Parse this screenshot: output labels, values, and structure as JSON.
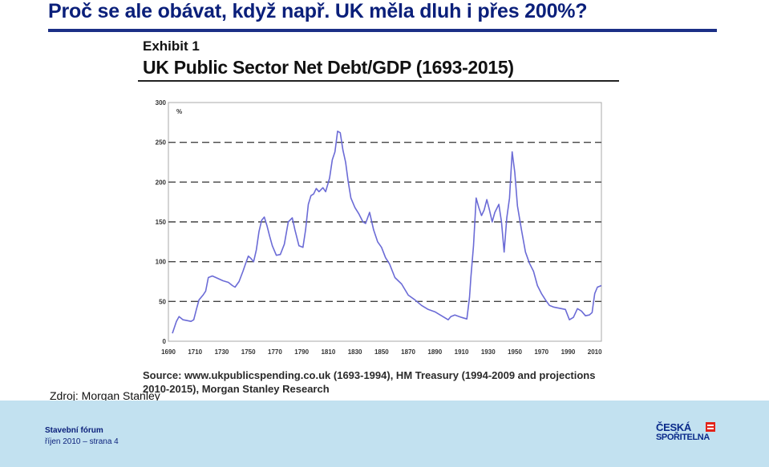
{
  "slide": {
    "title": "Proč se ale obávat, když např. UK měla dluh i přes 200%?",
    "source_credit": "Zdroj: Morgan Stanley"
  },
  "footer": {
    "organization": "Stavební fórum",
    "date": "říjen 2010 – strana 4",
    "logo_line1": "ČESKÁ",
    "logo_line2": "SPOŘITELNA"
  },
  "colors": {
    "title": "#0a1f7a",
    "rule": "#1b2f86",
    "series": "#6b6bd6",
    "footer_bg": "#c2e1f0",
    "logo_red": "#e2231a"
  },
  "chart_data": {
    "type": "line",
    "exhibit": "Exhibit 1",
    "title": "UK Public Sector Net Debt/GDP (1693-2015)",
    "ylabel": "%",
    "xlabel": "",
    "source": "Source: www.ukpublicspending.co.uk (1693-1994), HM Treasury (1994-2009 and projections 2010-2015), Morgan Stanley Research",
    "xlim": [
      1690,
      2015
    ],
    "ylim": [
      0,
      300
    ],
    "x_ticks": [
      1690,
      1710,
      1730,
      1750,
      1770,
      1790,
      1810,
      1830,
      1850,
      1870,
      1890,
      1910,
      1930,
      1950,
      1970,
      1990,
      2010
    ],
    "y_ticks": [
      0,
      50,
      100,
      150,
      200,
      250,
      300
    ],
    "grid": "dashed horizontal",
    "series": [
      {
        "x": [
          1693,
          1696,
          1698,
          1701,
          1704,
          1707,
          1709,
          1711,
          1713,
          1716,
          1718,
          1720,
          1723,
          1727,
          1731,
          1735,
          1738,
          1740,
          1743,
          1746,
          1748,
          1750,
          1752,
          1754,
          1756,
          1758,
          1760,
          1762,
          1764,
          1766,
          1768,
          1771,
          1774,
          1777,
          1780,
          1783,
          1785,
          1788,
          1791,
          1793,
          1795,
          1797,
          1799,
          1801,
          1803,
          1806,
          1808,
          1811,
          1813,
          1815,
          1817,
          1819,
          1821,
          1823,
          1825,
          1827,
          1830,
          1833,
          1836,
          1838,
          1841,
          1844,
          1847,
          1850,
          1853,
          1856,
          1860,
          1865,
          1870,
          1875,
          1880,
          1885,
          1890,
          1895,
          1900,
          1902,
          1905,
          1910,
          1914,
          1916,
          1917,
          1919,
          1921,
          1923,
          1925,
          1927,
          1929,
          1931,
          1933,
          1935,
          1938,
          1940,
          1942,
          1944,
          1946,
          1948,
          1950,
          1952,
          1955,
          1958,
          1961,
          1964,
          1967,
          1970,
          1973,
          1976,
          1979,
          1982,
          1985,
          1988,
          1991,
          1994,
          1997,
          2000,
          2003,
          2006,
          2008,
          2009,
          2010,
          2012,
          2015
        ],
        "y": [
          10,
          25,
          31,
          27,
          26,
          25,
          27,
          40,
          52,
          58,
          63,
          80,
          82,
          79,
          76,
          74,
          70,
          68,
          75,
          88,
          98,
          107,
          104,
          100,
          115,
          138,
          152,
          156,
          145,
          132,
          120,
          108,
          109,
          122,
          150,
          155,
          140,
          120,
          118,
          140,
          172,
          183,
          185,
          192,
          188,
          193,
          188,
          205,
          228,
          238,
          264,
          262,
          240,
          225,
          200,
          180,
          168,
          160,
          150,
          148,
          162,
          140,
          125,
          118,
          105,
          97,
          80,
          72,
          58,
          52,
          45,
          40,
          37,
          32,
          27,
          31,
          33,
          30,
          28,
          55,
          80,
          120,
          180,
          168,
          158,
          165,
          178,
          165,
          150,
          162,
          172,
          150,
          112,
          155,
          180,
          238,
          212,
          170,
          140,
          112,
          98,
          88,
          70,
          60,
          52,
          45,
          43,
          42,
          41,
          40,
          27,
          30,
          41,
          38,
          32,
          33,
          36,
          48,
          60,
          68,
          70
        ]
      }
    ]
  }
}
